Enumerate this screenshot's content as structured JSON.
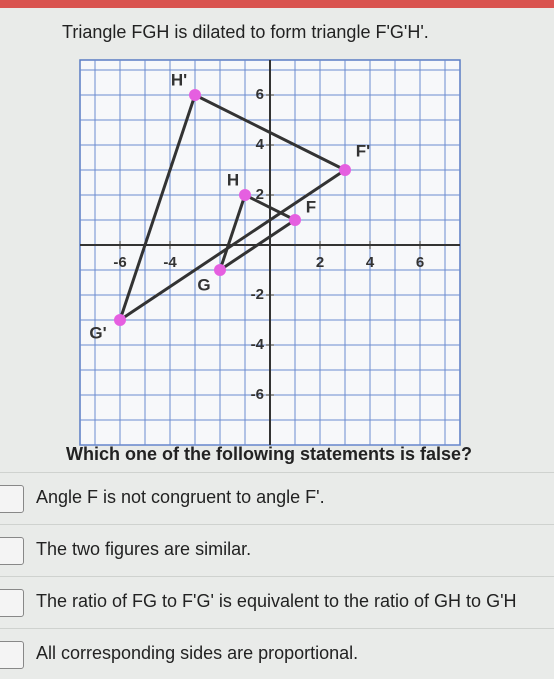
{
  "title": "Triangle FGH is dilated to form triangle F'G'H'.",
  "graph": {
    "xlim": [
      -7.6,
      7.6
    ],
    "ylim": [
      -8,
      7.4
    ],
    "xticks": [
      -6,
      -4,
      2,
      4,
      6
    ],
    "yticks": [
      6,
      4,
      2,
      -2,
      -4,
      -6
    ],
    "triangles": [
      {
        "points": [
          {
            "label": "F'",
            "x": 3,
            "y": 3
          },
          {
            "label": "G'",
            "x": -6,
            "y": -3
          },
          {
            "label": "H'",
            "x": -3,
            "y": 6
          }
        ]
      },
      {
        "points": [
          {
            "label": "F",
            "x": 1,
            "y": 1
          },
          {
            "label": "G",
            "x": -2,
            "y": -1
          },
          {
            "label": "H",
            "x": -1,
            "y": 2
          }
        ]
      }
    ]
  },
  "question": "Which one of the following statements is false?",
  "options": [
    "Angle F is not congruent to angle F'.",
    "The two figures are similar.",
    "The ratio of FG to F'G' is equivalent to the ratio of GH to G'H",
    "All corresponding sides are proportional."
  ]
}
